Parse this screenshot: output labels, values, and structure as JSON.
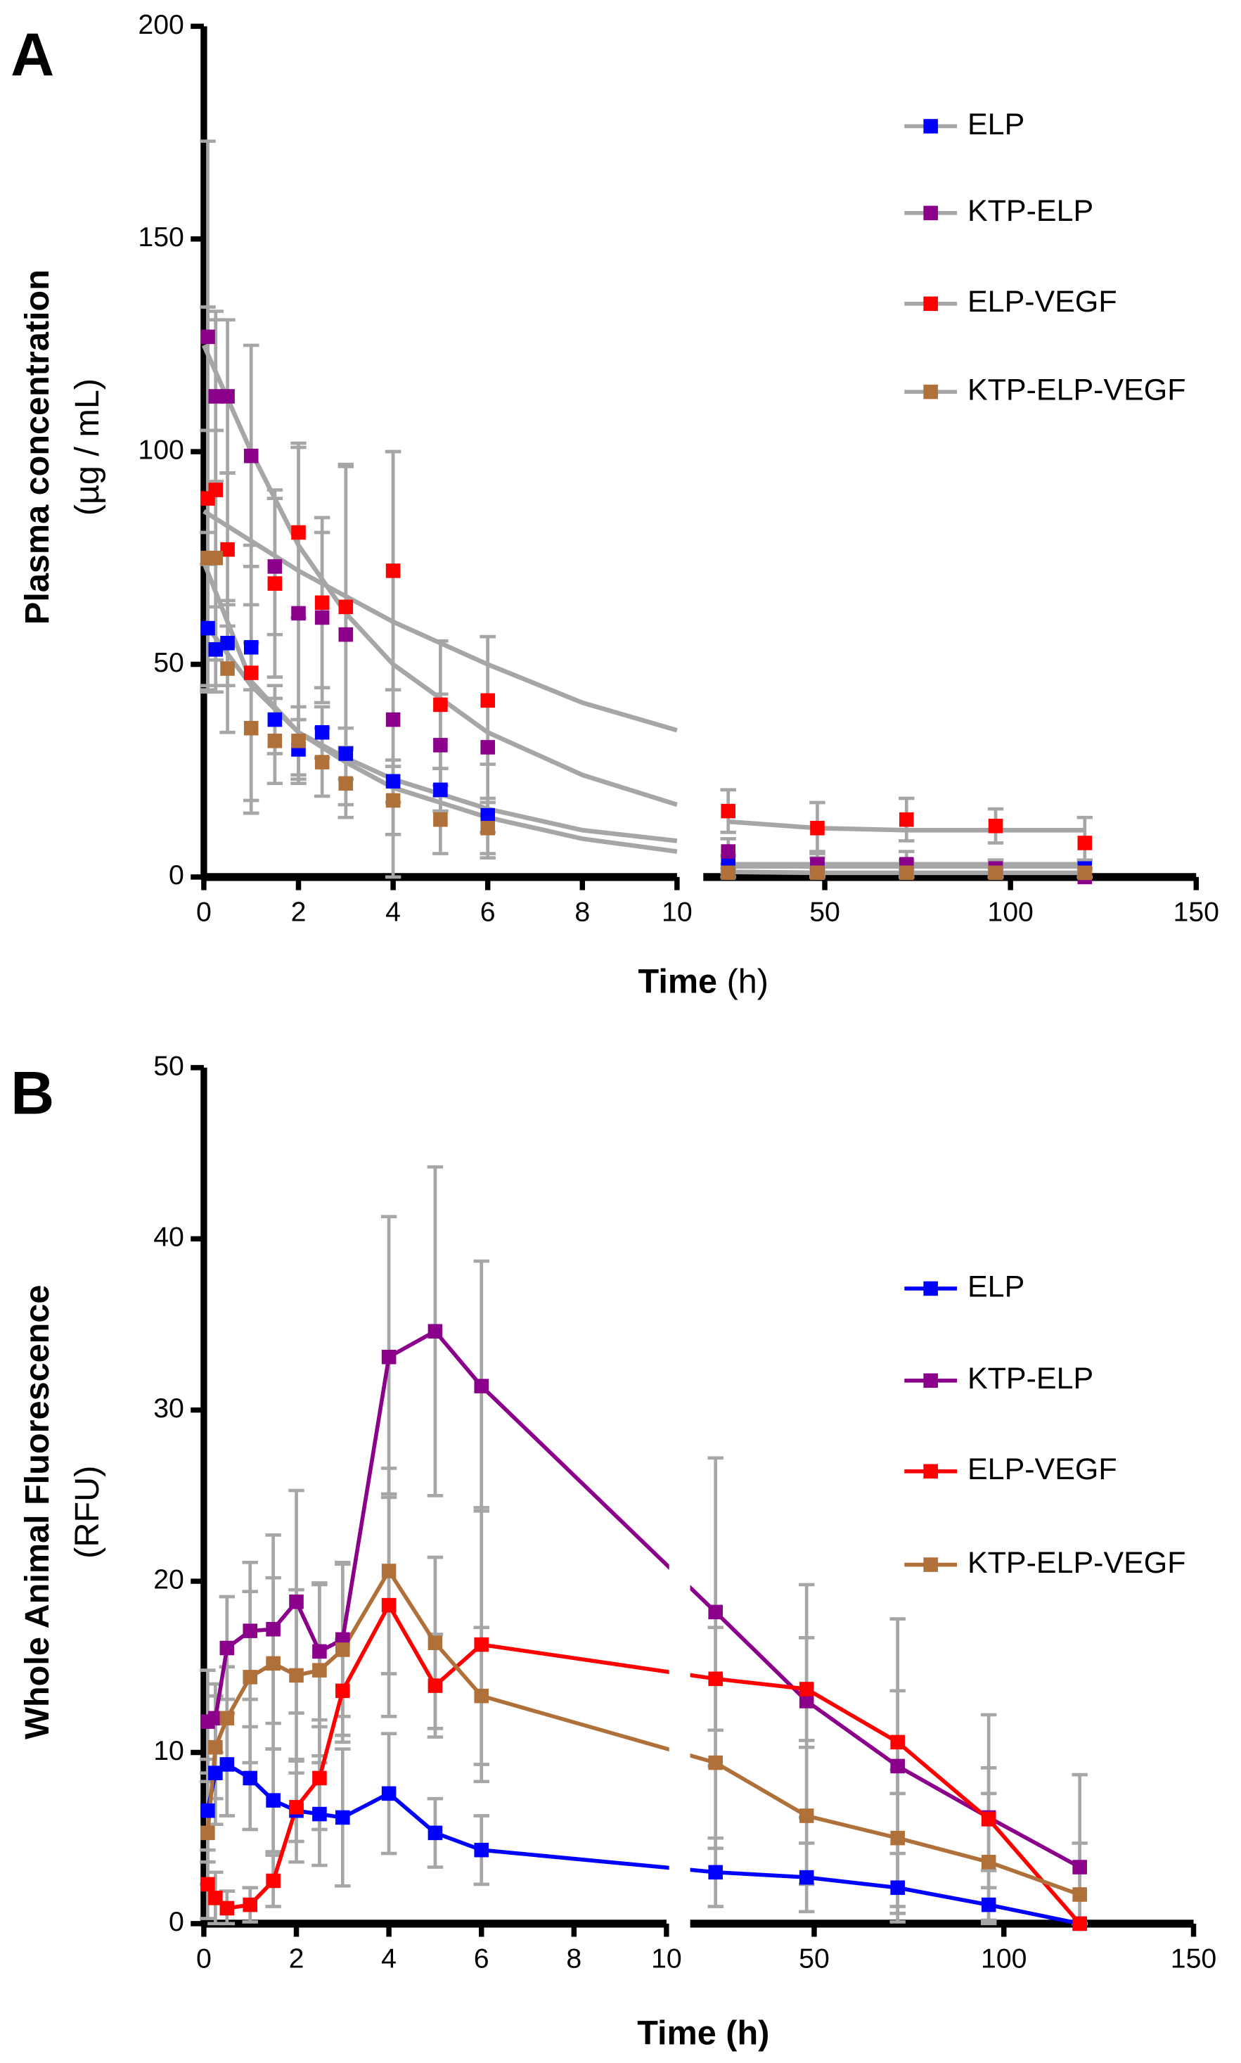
{
  "chart_data": [
    {
      "type": "scatter",
      "panel": "A",
      "ylabel": "Plasma concentration",
      "ylabel_unit": "(µg / mL)",
      "xlabel": "Time",
      "xlabel_unit": "(h)",
      "x": [
        0.083,
        0.25,
        0.5,
        1,
        1.5,
        2,
        2.5,
        3,
        4,
        5,
        6,
        24,
        48,
        72,
        96,
        120
      ],
      "xlim": [
        [
          0,
          10
        ],
        [
          18,
          150
        ]
      ],
      "xticks": [
        [
          0,
          2,
          4,
          6,
          8,
          10
        ],
        [
          50,
          100,
          150
        ]
      ],
      "ylim": [
        0,
        200
      ],
      "yticks": [
        0,
        50,
        100,
        150,
        200
      ],
      "fit_x": [
        0,
        1,
        2,
        3,
        4,
        6,
        8,
        10,
        24,
        48,
        72,
        96,
        120
      ],
      "fit_color": "#a6a6a6",
      "error_color": "#a6a6a6",
      "legend": "upper right",
      "series": [
        {
          "name": "ELP",
          "color": "#0000ff",
          "values": [
            58.5,
            53.5,
            55,
            54,
            37,
            30,
            34,
            29,
            22.5,
            20.5,
            14.5,
            3,
            2.5,
            2,
            2,
            2
          ],
          "errors": [
            15,
            10,
            10,
            10,
            8,
            7,
            6,
            6,
            5,
            5,
            4,
            2,
            2,
            2,
            2,
            2
          ],
          "fit": [
            60,
            45,
            34,
            28,
            23,
            16,
            11,
            8.5,
            2.5,
            2.5,
            2.5,
            2.5,
            2.5
          ]
        },
        {
          "name": "KTP-ELP",
          "color": "#8b008b",
          "values": [
            127,
            113,
            113,
            99,
            73,
            62,
            61,
            57,
            37,
            31,
            30.5,
            6,
            3,
            3,
            2,
            0
          ],
          "errors": [
            46,
            20,
            18,
            26,
            16,
            40,
            20,
            40,
            63,
            12,
            26,
            3,
            3,
            3,
            2,
            2
          ],
          "fit": [
            125,
            100,
            78,
            62,
            50,
            34,
            24,
            17,
            3,
            3,
            3,
            3,
            3
          ]
        },
        {
          "name": "ELP-VEGF",
          "color": "#ff0000",
          "values": [
            89,
            91,
            77,
            48,
            69,
            81,
            64.5,
            63.5,
            72,
            40.5,
            41.5,
            15.5,
            11.5,
            13.5,
            12,
            8
          ],
          "errors": [
            45,
            40,
            18,
            30,
            22,
            20,
            20,
            33,
            28,
            15,
            15,
            5,
            6,
            5,
            4,
            6
          ],
          "fit": [
            86,
            79,
            72,
            66,
            60,
            50,
            41,
            34.5,
            13,
            11.5,
            11,
            11,
            11
          ]
        },
        {
          "name": "KTP-ELP-VEGF",
          "color": "#b0703a",
          "values": [
            75,
            75,
            49,
            35,
            32,
            32,
            27,
            22,
            18,
            13.5,
            11.5,
            1,
            1,
            1,
            1,
            1
          ],
          "errors": [
            30,
            30,
            15,
            20,
            10,
            8,
            8,
            8,
            8,
            8,
            6,
            1,
            1,
            1,
            1,
            1
          ],
          "fit": [
            74,
            46,
            34,
            27,
            21,
            14,
            9,
            6,
            1.2,
            1,
            1,
            1,
            1
          ]
        }
      ]
    },
    {
      "type": "line",
      "panel": "B",
      "ylabel": "Whole Animal Fluorescence",
      "ylabel_unit": "(RFU)",
      "xlabel": "Time (h)",
      "x": [
        0.083,
        0.25,
        0.5,
        1,
        1.5,
        2,
        2.5,
        3,
        4,
        5,
        6,
        24,
        48,
        72,
        96,
        120
      ],
      "xlim": [
        [
          0,
          10
        ],
        [
          18,
          150
        ]
      ],
      "xticks": [
        [
          0,
          2,
          4,
          6,
          8,
          10
        ],
        [
          50,
          100,
          150
        ]
      ],
      "ylim": [
        0,
        50
      ],
      "yticks": [
        0,
        10,
        20,
        30,
        40,
        50
      ],
      "error_color": "#a6a6a6",
      "legend": "right",
      "series": [
        {
          "name": "ELP",
          "color": "#0000ff",
          "values": [
            6.6,
            8.8,
            9.3,
            8.5,
            7.2,
            6.6,
            6.4,
            6.2,
            7.6,
            5.3,
            4.3,
            3.0,
            2.7,
            2.1,
            1.1,
            0
          ],
          "errors": [
            3,
            3,
            3,
            3,
            3,
            3,
            3,
            4,
            3.5,
            2,
            2,
            2,
            2,
            2,
            1,
            0
          ]
        },
        {
          "name": "KTP-ELP",
          "color": "#8b008b",
          "values": [
            11.8,
            12.0,
            16.1,
            17.1,
            17.2,
            18.8,
            15.9,
            16.6,
            33.1,
            34.6,
            31.4,
            18.2,
            13.0,
            9.2,
            6.2,
            3.3
          ],
          "errors": [
            3,
            2,
            3,
            4,
            5.5,
            6.5,
            4,
            4.5,
            8.2,
            9.6,
            7.3,
            9,
            6.8,
            8.6,
            6,
            5.4
          ]
        },
        {
          "name": "ELP-VEGF",
          "color": "#ff0000",
          "values": [
            2.3,
            1.5,
            0.9,
            1.1,
            2.5,
            6.8,
            8.5,
            13.6,
            18.6,
            13.9,
            16.3,
            14.3,
            13.7,
            10.6,
            6.1,
            0
          ],
          "errors": [
            2,
            1.5,
            1,
            1,
            1.5,
            2,
            3,
            3,
            6.5,
            3,
            8,
            3,
            3,
            3,
            3,
            0
          ]
        },
        {
          "name": "KTP-ELP-VEGF",
          "color": "#b0703a",
          "values": [
            5.3,
            10.3,
            12.0,
            14.4,
            15.2,
            14.5,
            14.8,
            16.0,
            20.6,
            16.4,
            13.3,
            9.4,
            6.3,
            5.0,
            3.6,
            1.7
          ],
          "errors": [
            3,
            3,
            3,
            5,
            5,
            5,
            5,
            5,
            6,
            5,
            4,
            5,
            4,
            4,
            4,
            3
          ]
        }
      ]
    }
  ]
}
